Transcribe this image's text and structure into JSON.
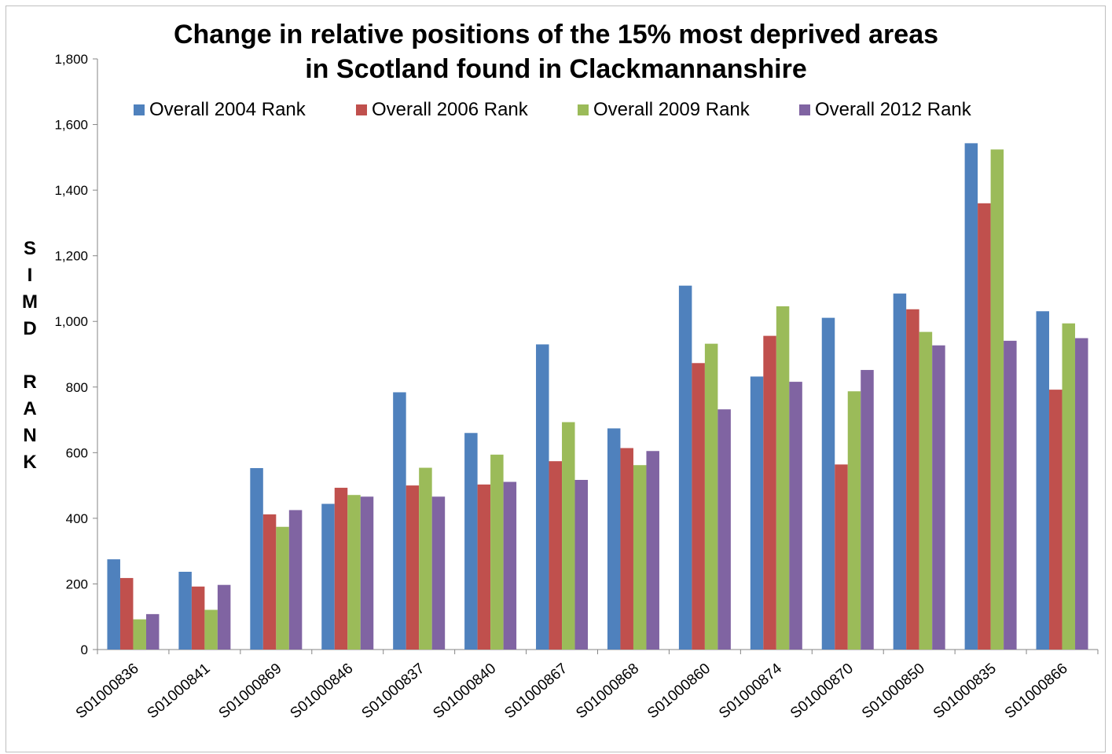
{
  "chart_data": {
    "type": "bar",
    "title_lines": [
      "Change in relative positions of the 15% most deprived areas",
      "in Scotland found in Clackmannanshire"
    ],
    "ylabel": "SIMD RANK",
    "xlabel": "",
    "ylim": [
      0,
      1800
    ],
    "y_ticks": [
      "0",
      "200",
      "400",
      "600",
      "800",
      "1,000",
      "1,200",
      "1,400",
      "1,600",
      "1,800"
    ],
    "y_tick_values": [
      0,
      200,
      400,
      600,
      800,
      1000,
      1200,
      1400,
      1600,
      1800
    ],
    "grid": false,
    "legend_position": "top",
    "categories": [
      "S01000836",
      "S01000841",
      "S01000869",
      "S01000846",
      "S01000837",
      "S01000840",
      "S01000867",
      "S01000868",
      "S01000860",
      "S01000874",
      "S01000870",
      "S01000850",
      "S01000835",
      "S01000866"
    ],
    "series": [
      {
        "name": "Overall 2004 Rank",
        "color": "#4f81bd",
        "values": [
          275,
          237,
          553,
          444,
          784,
          660,
          930,
          674,
          1109,
          832,
          1011,
          1085,
          1543,
          1031
        ]
      },
      {
        "name": "Overall 2006 Rank",
        "color": "#c0504d",
        "values": [
          218,
          192,
          412,
          493,
          500,
          503,
          574,
          614,
          873,
          956,
          564,
          1037,
          1360,
          792
        ]
      },
      {
        "name": "Overall 2009 Rank",
        "color": "#9bbb59",
        "values": [
          92,
          121,
          374,
          471,
          554,
          594,
          693,
          562,
          932,
          1046,
          787,
          968,
          1524,
          994
        ]
      },
      {
        "name": "Overall 2012 Rank",
        "color": "#8064a2",
        "values": [
          108,
          197,
          425,
          466,
          466,
          511,
          517,
          605,
          732,
          816,
          852,
          927,
          941,
          949
        ]
      }
    ]
  }
}
